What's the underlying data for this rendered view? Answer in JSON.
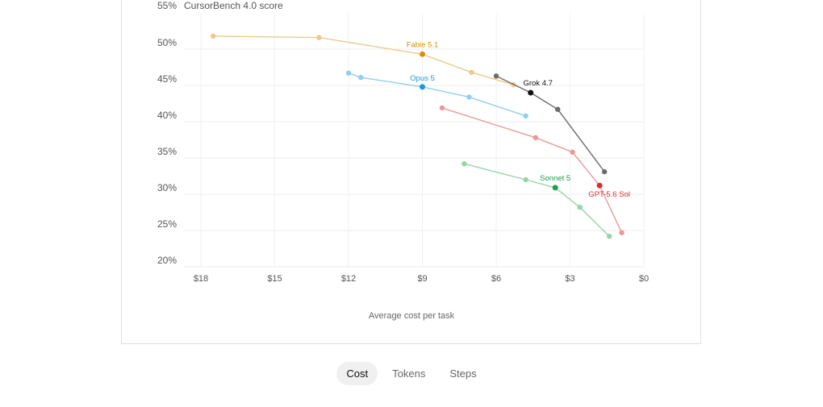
{
  "chart_data": {
    "type": "line",
    "ylabel": "CursorBench 4.0 score",
    "xlabel": "Average cost per task",
    "x_reversed": true,
    "xlim": [
      19,
      0
    ],
    "ylim": [
      20,
      55
    ],
    "x_ticks": [
      18,
      15,
      12,
      9,
      6,
      3,
      0
    ],
    "x_tick_labels": [
      "$18",
      "$15",
      "$12",
      "$9",
      "$6",
      "$3",
      "$0"
    ],
    "y_ticks": [
      20,
      25,
      30,
      35,
      40,
      45,
      50,
      55
    ],
    "y_tick_labels": [
      "20%",
      "25%",
      "30%",
      "35%",
      "40%",
      "45%",
      "50%",
      "55%"
    ],
    "grid": true,
    "series": [
      {
        "name": "Fable 5.1",
        "color": "#d4900f",
        "light_color": "#eec98b",
        "x": [
          17.5,
          13.2,
          9.0,
          7.0,
          5.3
        ],
        "y": [
          51.8,
          51.6,
          49.3,
          46.8,
          45.1
        ],
        "highlight_index": 2
      },
      {
        "name": "Opus 5",
        "color": "#1a9bd7",
        "light_color": "#8fd0ee",
        "x": [
          12.0,
          11.5,
          9.0,
          7.1,
          4.8
        ],
        "y": [
          46.7,
          46.1,
          44.8,
          43.4,
          40.8
        ],
        "highlight_index": 2
      },
      {
        "name": "Grok 4.7",
        "color": "#111111",
        "light_color": "#6b6b6b",
        "x": [
          6.0,
          4.6,
          3.5,
          1.6
        ],
        "y": [
          46.3,
          44.0,
          41.7,
          33.1
        ],
        "highlight_index": 1
      },
      {
        "name": "GPT-5.6 Sol",
        "color": "#e02a2a",
        "light_color": "#eb9898",
        "x": [
          8.2,
          4.4,
          2.9,
          1.8,
          0.9
        ],
        "y": [
          41.9,
          37.8,
          35.8,
          31.2,
          24.7
        ],
        "highlight_index": 3
      },
      {
        "name": "Sonnet 5",
        "color": "#1f9e4b",
        "light_color": "#94d6a8",
        "x": [
          7.3,
          4.8,
          3.6,
          2.6,
          1.4
        ],
        "y": [
          34.2,
          32.0,
          30.9,
          28.2,
          24.2
        ],
        "highlight_index": 2
      }
    ]
  },
  "tabs": [
    {
      "label": "Cost",
      "active": true
    },
    {
      "label": "Tokens",
      "active": false
    },
    {
      "label": "Steps",
      "active": false
    }
  ]
}
